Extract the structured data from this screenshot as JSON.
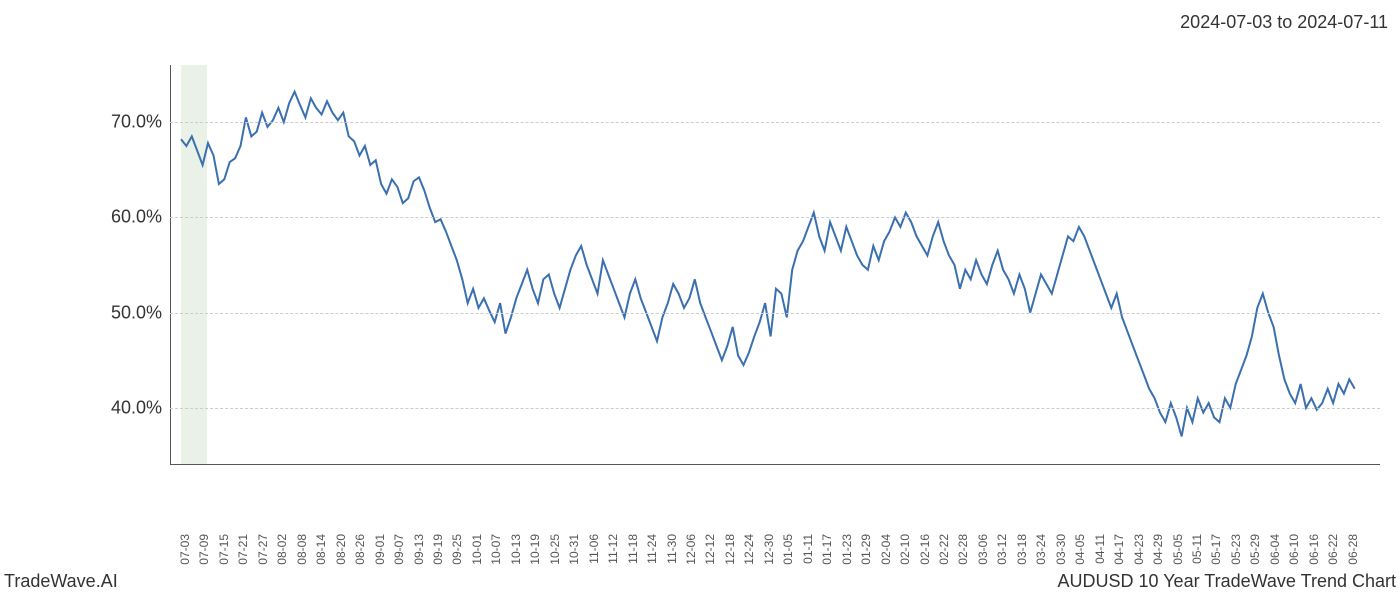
{
  "date_range": "2024-07-03 to 2024-07-11",
  "footer_left": "TradeWave.AI",
  "footer_right": "AUDUSD 10 Year TradeWave Trend Chart",
  "chart": {
    "type": "line",
    "line_color": "#3a6fb0",
    "line_width": 2,
    "background_color": "#ffffff",
    "grid_color": "#cccccc",
    "grid_style": "dashed",
    "axis_color": "#555555",
    "ylim": [
      34,
      76
    ],
    "y_ticks": [
      40.0,
      50.0,
      60.0,
      70.0
    ],
    "y_tick_labels": [
      "40.0%",
      "50.0%",
      "60.0%",
      "70.0%"
    ],
    "y_label_fontsize": 18,
    "x_ticks": [
      "07-03",
      "07-09",
      "07-15",
      "07-21",
      "07-27",
      "08-02",
      "08-08",
      "08-14",
      "08-20",
      "08-26",
      "09-01",
      "09-07",
      "09-13",
      "09-19",
      "09-25",
      "10-01",
      "10-07",
      "10-13",
      "10-19",
      "10-25",
      "10-31",
      "11-06",
      "11-12",
      "11-18",
      "11-24",
      "11-30",
      "12-06",
      "12-12",
      "12-18",
      "12-24",
      "12-30",
      "01-05",
      "01-11",
      "01-17",
      "01-23",
      "01-29",
      "02-04",
      "02-10",
      "02-16",
      "02-22",
      "02-28",
      "03-06",
      "03-12",
      "03-18",
      "03-24",
      "03-30",
      "04-05",
      "04-11",
      "04-17",
      "04-23",
      "04-29",
      "05-05",
      "05-11",
      "05-17",
      "05-23",
      "05-29",
      "06-04",
      "06-10",
      "06-16",
      "06-22",
      "06-28"
    ],
    "x_label_fontsize": 12,
    "highlight_band": {
      "from": "07-03",
      "to": "07-11",
      "color": "#dce8d5",
      "opacity": 0.6
    },
    "values": [
      68.2,
      67.5,
      68.5,
      67.0,
      65.5,
      67.8,
      66.5,
      63.5,
      64.0,
      65.8,
      66.2,
      67.5,
      70.5,
      68.5,
      69.0,
      71.0,
      69.5,
      70.2,
      71.5,
      70.0,
      72.0,
      73.2,
      71.8,
      70.5,
      72.5,
      71.5,
      70.8,
      72.2,
      71.0,
      70.2,
      71.0,
      68.5,
      68.0,
      66.5,
      67.5,
      65.5,
      66.0,
      63.5,
      62.5,
      64.0,
      63.2,
      61.5,
      62.0,
      63.8,
      64.2,
      62.8,
      61.0,
      59.5,
      59.8,
      58.5,
      57.0,
      55.5,
      53.5,
      51.0,
      52.5,
      50.5,
      51.5,
      50.2,
      49.0,
      51.0,
      47.8,
      49.5,
      51.5,
      53.0,
      54.5,
      52.5,
      51.0,
      53.5,
      54.0,
      52.0,
      50.5,
      52.5,
      54.5,
      56.0,
      57.0,
      55.0,
      53.5,
      52.0,
      55.5,
      54.0,
      52.5,
      51.0,
      49.5,
      52.0,
      53.5,
      51.5,
      50.0,
      48.5,
      47.0,
      49.5,
      51.0,
      53.0,
      52.0,
      50.5,
      51.5,
      53.5,
      51.0,
      49.5,
      48.0,
      46.5,
      45.0,
      46.5,
      48.5,
      45.5,
      44.5,
      45.8,
      47.5,
      49.0,
      51.0,
      47.5,
      52.5,
      52.0,
      49.5,
      54.5,
      56.5,
      57.5,
      59.0,
      60.5,
      58.0,
      56.5,
      59.5,
      58.0,
      56.5,
      59.0,
      57.5,
      56.0,
      55.0,
      54.5,
      57.0,
      55.5,
      57.5,
      58.5,
      60.0,
      59.0,
      60.5,
      59.5,
      58.0,
      57.0,
      56.0,
      58.0,
      59.5,
      57.5,
      56.0,
      55.0,
      52.5,
      54.5,
      53.5,
      55.5,
      54.0,
      53.0,
      55.0,
      56.5,
      54.5,
      53.5,
      52.0,
      54.0,
      52.5,
      50.0,
      52.0,
      54.0,
      53.0,
      52.0,
      54.0,
      56.0,
      58.0,
      57.5,
      59.0,
      58.0,
      56.5,
      55.0,
      53.5,
      52.0,
      50.5,
      52.0,
      49.5,
      48.0,
      46.5,
      45.0,
      43.5,
      42.0,
      41.0,
      39.5,
      38.5,
      40.5,
      39.0,
      37.0,
      40.0,
      38.5,
      41.0,
      39.5,
      40.5,
      39.0,
      38.5,
      41.0,
      40.0,
      42.5,
      44.0,
      45.5,
      47.5,
      50.5,
      52.0,
      50.0,
      48.5,
      45.5,
      43.0,
      41.5,
      40.5,
      42.5,
      40.0,
      41.0,
      39.8,
      40.5,
      42.0,
      40.5,
      42.5,
      41.5,
      43.0,
      42.0
    ]
  }
}
